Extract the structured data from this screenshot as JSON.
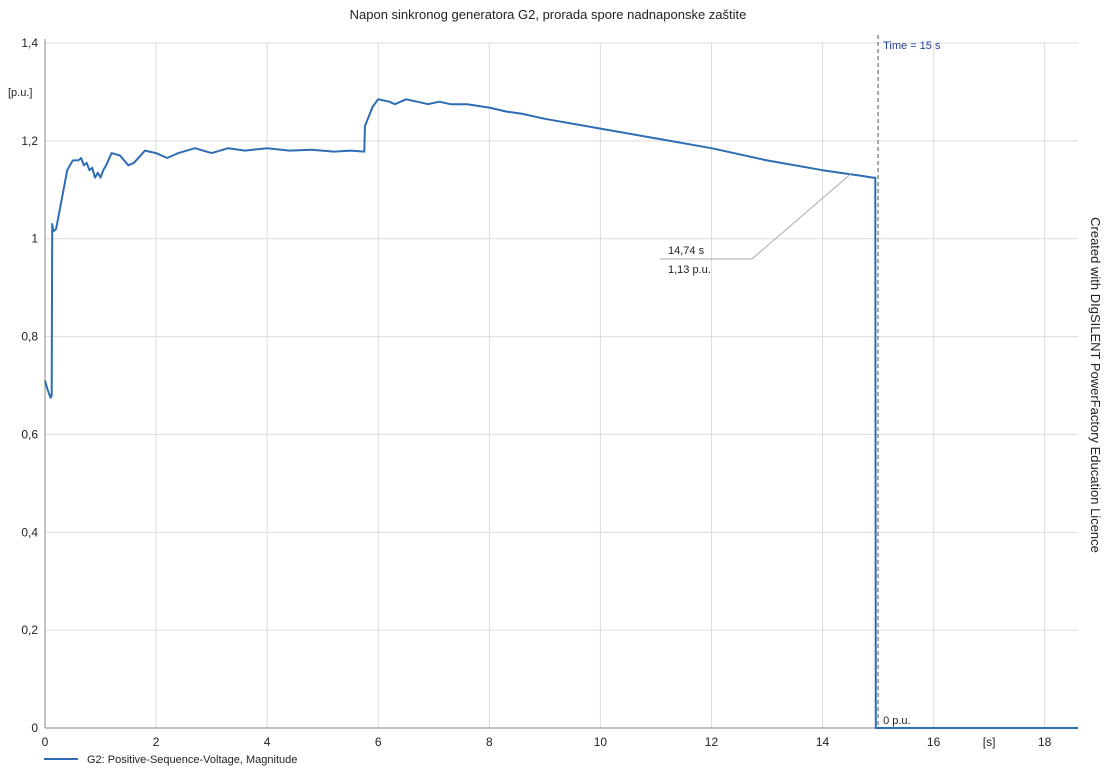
{
  "chart_data": {
    "type": "line",
    "title": "Napon sinkronog generatora G2, prorada spore nadnaponske zaštite",
    "ylabel": "[p.u.]",
    "xlabel": "[s]",
    "xlim": [
      0,
      18.6
    ],
    "ylim": [
      0,
      1.4
    ],
    "x_ticks": [
      "0",
      "2",
      "4",
      "6",
      "8",
      "10",
      "12",
      "14",
      "16",
      "18"
    ],
    "x_tick_values": [
      0,
      2,
      4,
      6,
      8,
      10,
      12,
      14,
      16,
      18
    ],
    "y_ticks": [
      "0",
      "0,2",
      "0,4",
      "0,6",
      "0,8",
      "1",
      "1,2",
      "1,4"
    ],
    "y_tick_values": [
      0,
      0.2,
      0.4,
      0.6,
      0.8,
      1.0,
      1.2,
      1.4
    ],
    "grid": true,
    "line_color": "#2e6db4",
    "legend_position": "bottom-left",
    "series": [
      {
        "name": "G2: Positive-Sequence-Voltage, Magnitude",
        "x": [
          0,
          0.05,
          0.1,
          0.12,
          0.13,
          0.15,
          0.2,
          0.3,
          0.4,
          0.5,
          0.55,
          0.6,
          0.65,
          0.7,
          0.75,
          0.8,
          0.85,
          0.9,
          0.95,
          1.0,
          1.05,
          1.1,
          1.2,
          1.35,
          1.5,
          1.6,
          1.8,
          2.0,
          2.2,
          2.4,
          2.7,
          3.0,
          3.3,
          3.6,
          4.0,
          4.4,
          4.8,
          5.2,
          5.5,
          5.75,
          5.76,
          5.9,
          6.0,
          6.2,
          6.3,
          6.5,
          6.7,
          6.9,
          7.1,
          7.3,
          7.6,
          8.0,
          8.3,
          8.6,
          9.0,
          10.0,
          11.0,
          12.0,
          13.0,
          14.0,
          14.74,
          14.9,
          14.95,
          14.96,
          15.0,
          16.0,
          17.0,
          18.6
        ],
        "y": [
          0.71,
          0.69,
          0.675,
          0.68,
          1.03,
          1.015,
          1.02,
          1.08,
          1.14,
          1.16,
          1.16,
          1.16,
          1.165,
          1.15,
          1.155,
          1.14,
          1.145,
          1.125,
          1.135,
          1.125,
          1.14,
          1.15,
          1.175,
          1.17,
          1.15,
          1.155,
          1.18,
          1.175,
          1.165,
          1.175,
          1.185,
          1.175,
          1.185,
          1.18,
          1.185,
          1.18,
          1.182,
          1.178,
          1.18,
          1.178,
          1.23,
          1.27,
          1.285,
          1.28,
          1.275,
          1.285,
          1.28,
          1.275,
          1.28,
          1.275,
          1.275,
          1.268,
          1.26,
          1.255,
          1.245,
          1.225,
          1.205,
          1.185,
          1.16,
          1.14,
          1.128,
          1.125,
          1.125,
          0,
          0,
          0,
          0,
          0
        ]
      }
    ],
    "cursor": {
      "label": "Time = 15 s",
      "x": 15
    },
    "annotations": [
      {
        "x_text": "14,74 s",
        "y_text": "1,13 p.u.",
        "x": 14.74,
        "y": 1.13
      },
      {
        "text": "0 p.u.",
        "x": 15,
        "y": 0
      }
    ],
    "side_text": "Created with DIgSILENT PowerFactory Education Licence"
  }
}
